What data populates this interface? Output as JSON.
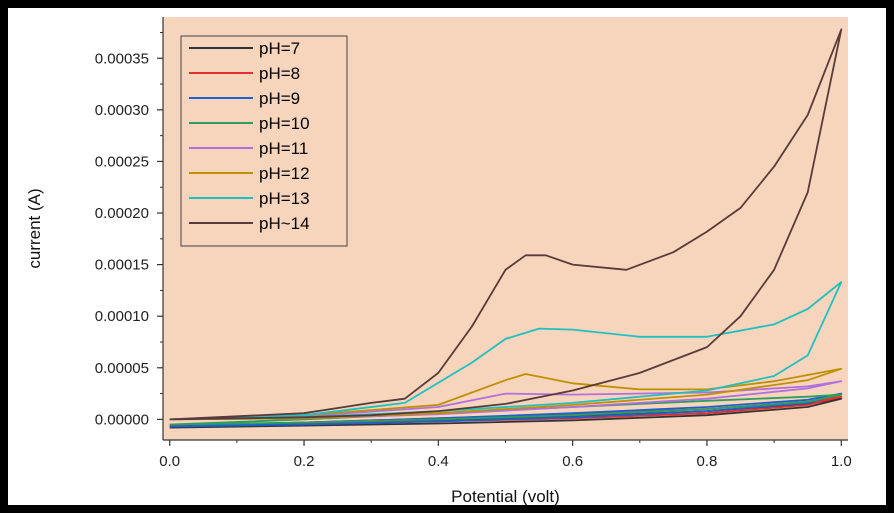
{
  "chart_data": {
    "type": "line",
    "title": "",
    "xlabel": "Potential (volt)",
    "ylabel": "current (A)",
    "xlim": [
      -0.01,
      1.01
    ],
    "ylim": [
      -2e-05,
      0.00039
    ],
    "xticks": [
      0.0,
      0.2,
      0.4,
      0.6,
      0.8,
      1.0
    ],
    "xtick_labels": [
      "0.0",
      "0.2",
      "0.4",
      "0.6",
      "0.8",
      "1.0"
    ],
    "yticks": [
      0.0,
      5e-05,
      0.0001,
      0.00015,
      0.0002,
      0.00025,
      0.0003,
      0.00035
    ],
    "ytick_labels": [
      "0.00000",
      "0.00005",
      "0.00010",
      "0.00015",
      "0.00020",
      "0.00025",
      "0.00030",
      "0.00035"
    ],
    "grid": false,
    "legend_position": "top-left",
    "plot_background": "#f7d5bc",
    "series": [
      {
        "name": "pH=7",
        "color": "#333333",
        "x": [
          0,
          0.2,
          0.4,
          0.6,
          0.8,
          0.95,
          1.0,
          0.95,
          0.8,
          0.6,
          0.4,
          0.2,
          0
        ],
        "y": [
          -8e-06,
          -6e-06,
          -4e-06,
          -1e-06,
          4e-06,
          1.2e-05,
          2e-05,
          1.5e-05,
          8e-06,
          3e-06,
          -1e-06,
          -5e-06,
          -8e-06
        ]
      },
      {
        "name": "pH=8",
        "color": "#e03030",
        "x": [
          0,
          0.2,
          0.4,
          0.6,
          0.8,
          0.95,
          1.0,
          0.95,
          0.8,
          0.6,
          0.4,
          0.2,
          0
        ],
        "y": [
          -6e-06,
          -4e-06,
          -2e-06,
          1e-06,
          6e-06,
          1.4e-05,
          2.2e-05,
          1.7e-05,
          1e-05,
          5e-06,
          1e-06,
          -3e-06,
          -6e-06
        ]
      },
      {
        "name": "pH=9",
        "color": "#1f5fd0",
        "x": [
          0,
          0.2,
          0.4,
          0.6,
          0.8,
          0.95,
          1.0,
          0.95,
          0.8,
          0.6,
          0.4,
          0.2,
          0
        ],
        "y": [
          -7e-06,
          -5e-06,
          -2e-06,
          2e-06,
          8e-06,
          1.6e-05,
          2.5e-05,
          1.9e-05,
          1.2e-05,
          6e-06,
          1e-06,
          -3e-06,
          -7e-06
        ]
      },
      {
        "name": "pH=10",
        "color": "#2e9e5e",
        "x": [
          0,
          0.2,
          0.4,
          0.6,
          0.8,
          0.95,
          1.0,
          0.95,
          0.8,
          0.6,
          0.4,
          0.2,
          0
        ],
        "y": [
          -5e-06,
          -3e-06,
          0.0,
          4e-06,
          1e-05,
          1.7e-05,
          2.4e-05,
          2.2e-05,
          1.8e-05,
          1.2e-05,
          6e-06,
          0.0,
          -5e-06
        ]
      },
      {
        "name": "pH=11",
        "color": "#b070e0",
        "x": [
          0,
          0.2,
          0.4,
          0.5,
          0.6,
          0.8,
          0.95,
          1.0,
          0.95,
          0.8,
          0.6,
          0.4,
          0.2,
          0
        ],
        "y": [
          0.0,
          3e-06,
          1.2e-05,
          2.5e-05,
          2.4e-05,
          2.6e-05,
          3.2e-05,
          3.7e-05,
          3e-05,
          2e-05,
          1.2e-05,
          5e-06,
          1e-06,
          0.0
        ]
      },
      {
        "name": "pH=12",
        "color": "#c09000",
        "x": [
          0,
          0.2,
          0.4,
          0.5,
          0.53,
          0.6,
          0.7,
          0.8,
          0.9,
          0.95,
          1.0,
          0.95,
          0.8,
          0.6,
          0.4,
          0.2,
          0
        ],
        "y": [
          0.0,
          4e-06,
          1.4e-05,
          3.8e-05,
          4.4e-05,
          3.5e-05,
          2.9e-05,
          2.9e-05,
          3.7e-05,
          4.3e-05,
          4.9e-05,
          3.8e-05,
          2.4e-05,
          1.4e-05,
          6e-06,
          1e-06,
          0.0
        ]
      },
      {
        "name": "pH=13",
        "color": "#20c0c0",
        "x": [
          0,
          0.2,
          0.35,
          0.45,
          0.5,
          0.55,
          0.6,
          0.7,
          0.8,
          0.9,
          0.95,
          1.0,
          0.95,
          0.9,
          0.8,
          0.6,
          0.4,
          0.2,
          0
        ],
        "y": [
          0.0,
          4e-06,
          1.6e-05,
          5.5e-05,
          7.8e-05,
          8.8e-05,
          8.7e-05,
          8e-05,
          8e-05,
          9.2e-05,
          0.000107,
          0.000133,
          6.2e-05,
          4.2e-05,
          2.8e-05,
          1.6e-05,
          8e-06,
          2e-06,
          0.0
        ]
      },
      {
        "name": "pH~14",
        "color": "#5a3a3a",
        "x": [
          0,
          0.2,
          0.3,
          0.35,
          0.4,
          0.45,
          0.5,
          0.53,
          0.56,
          0.6,
          0.68,
          0.75,
          0.8,
          0.85,
          0.9,
          0.95,
          1.0,
          0.95,
          0.9,
          0.85,
          0.8,
          0.7,
          0.6,
          0.5,
          0.4,
          0.3,
          0.2,
          0
        ],
        "y": [
          0.0,
          6e-06,
          1.6e-05,
          2e-05,
          4.5e-05,
          9e-05,
          0.000145,
          0.000159,
          0.000159,
          0.00015,
          0.000145,
          0.000162,
          0.000182,
          0.000205,
          0.000245,
          0.000295,
          0.000378,
          0.00022,
          0.000145,
          0.0001,
          7e-05,
          4.5e-05,
          2.8e-05,
          1.5e-05,
          8e-06,
          4e-06,
          2e-06,
          0.0
        ]
      }
    ]
  }
}
